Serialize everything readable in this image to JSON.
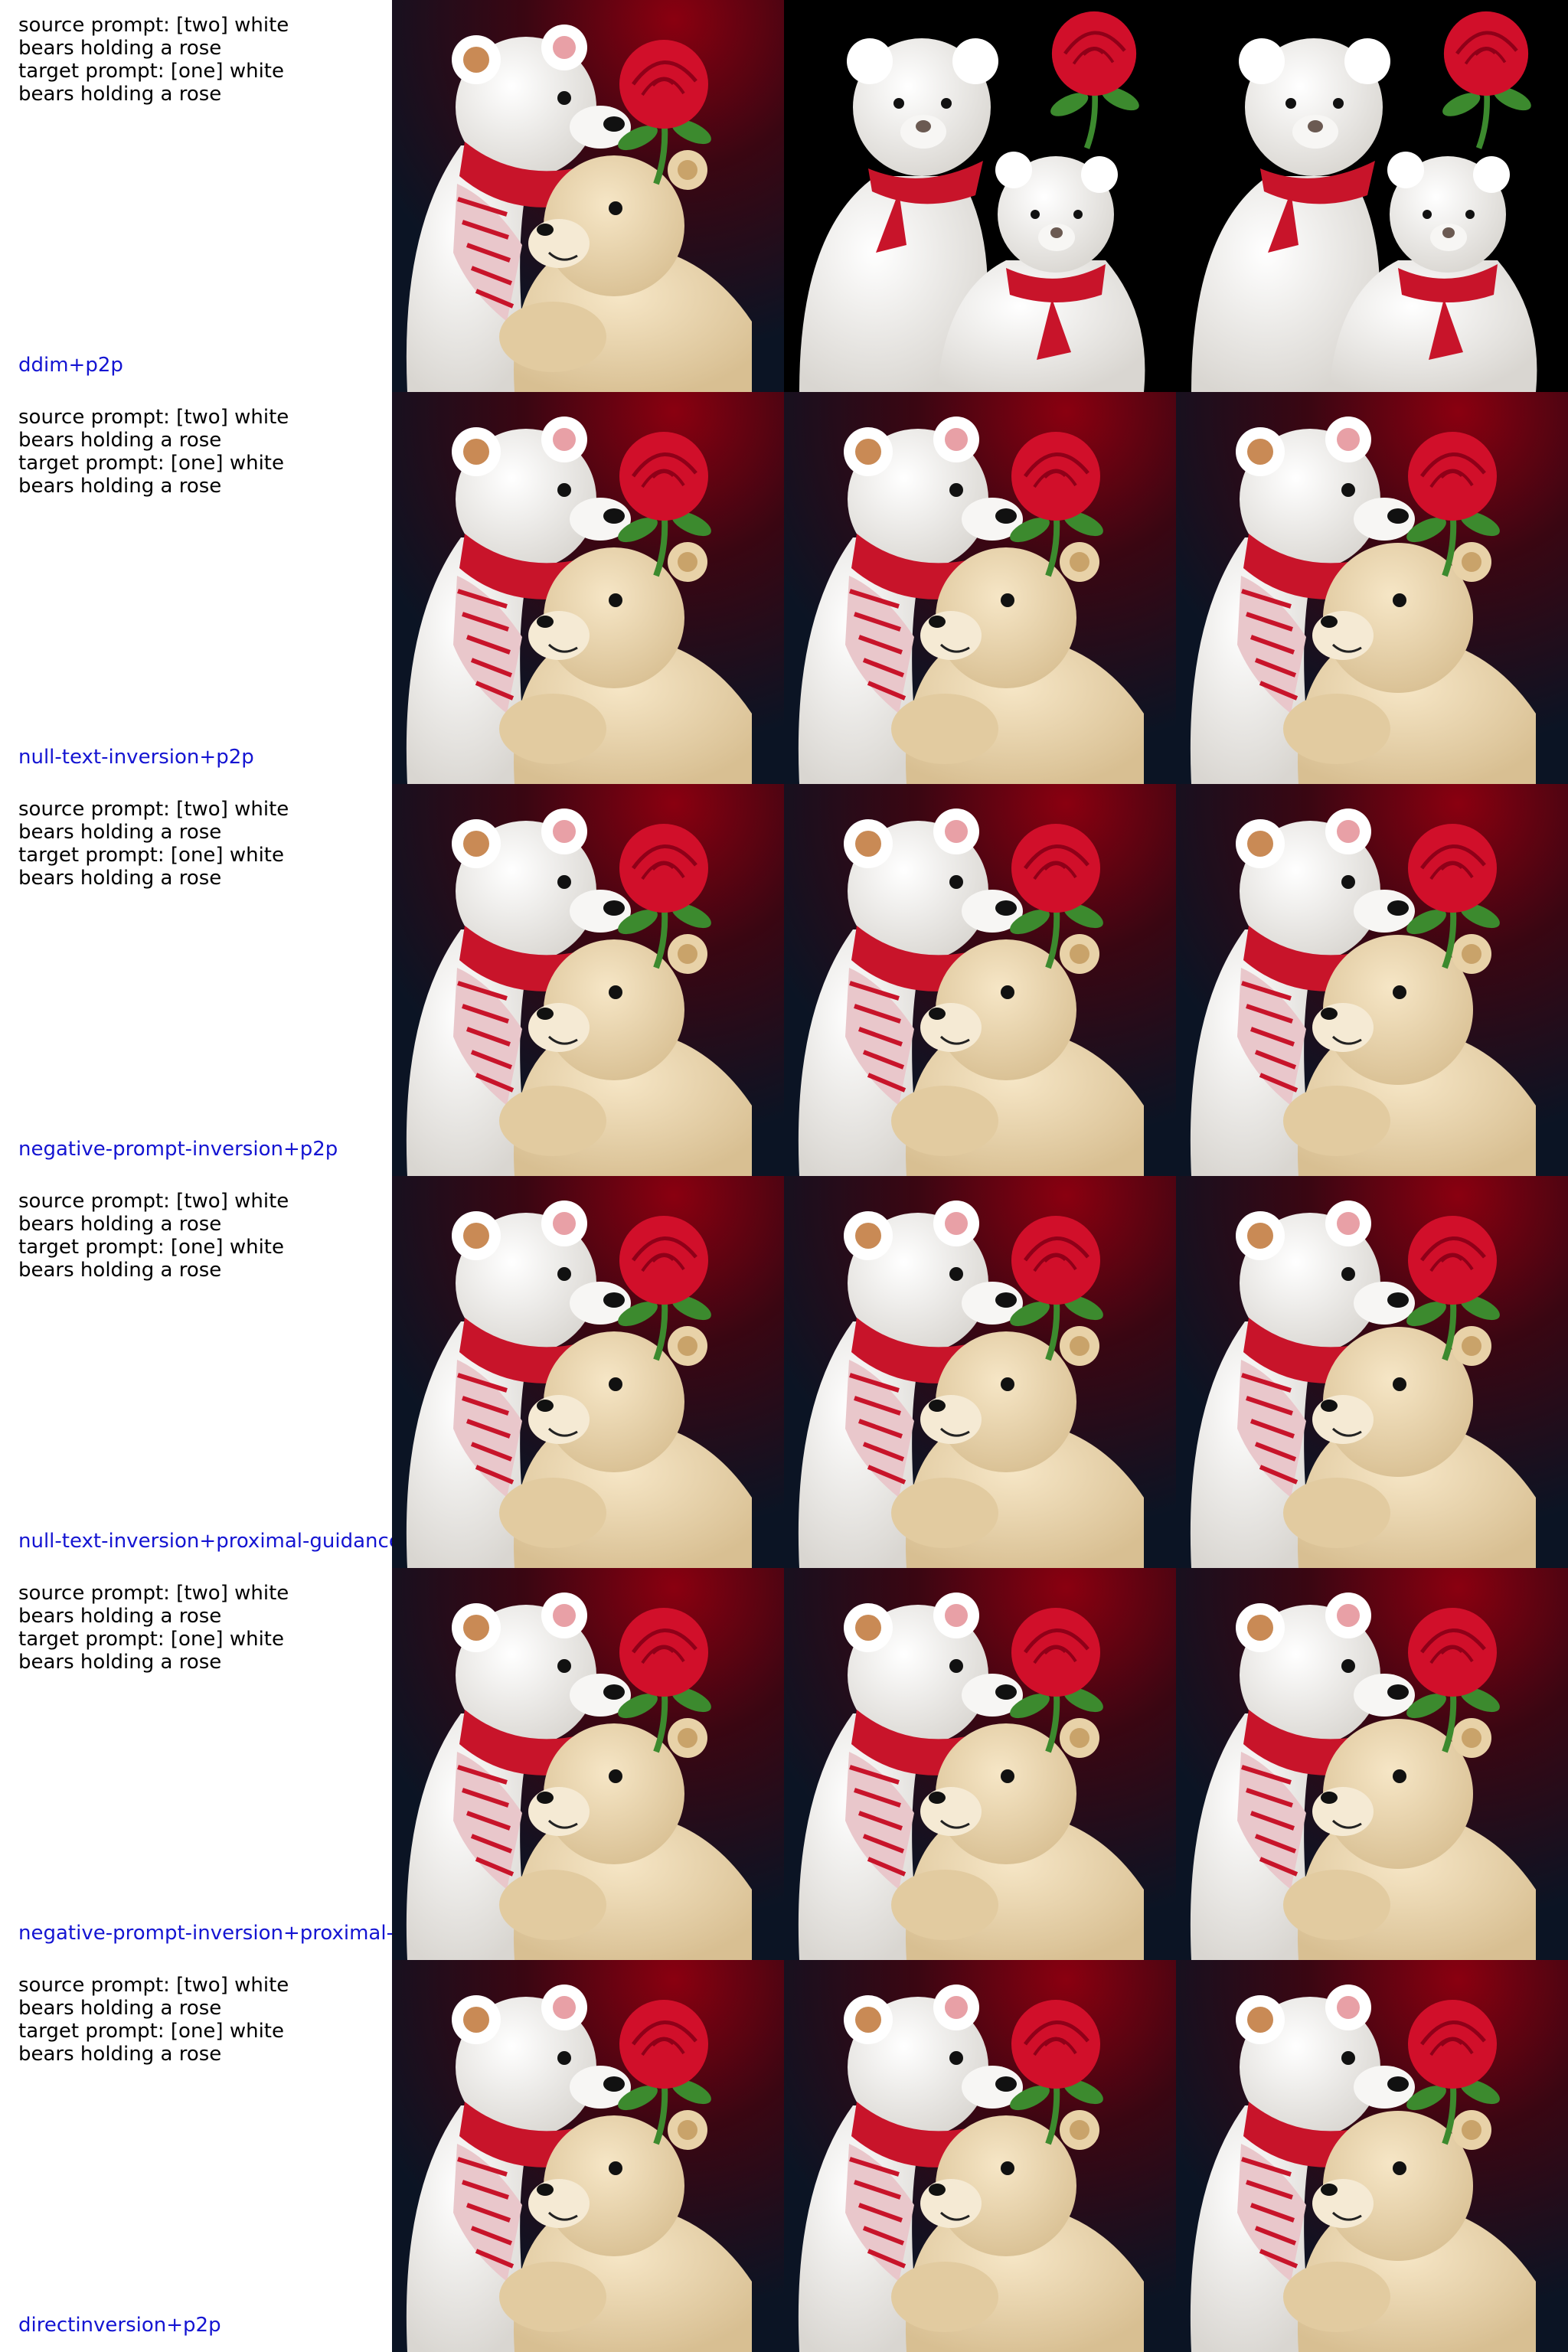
{
  "rows": [
    {
      "source_prompt": "source prompt: [two] white bears holding a rose",
      "target_prompt": "target prompt: [one] white bears holding a rose",
      "method": "ddim+p2p",
      "images": [
        {
          "desc": "white knit bear with red scarf hugging tan bear, red rose, dark background"
        },
        {
          "desc": "two white bears with red ribbons and a large red rose on black background"
        },
        {
          "desc": "two white bears with red ribbons and a large red rose on black background"
        }
      ]
    },
    {
      "source_prompt": "source prompt: [two] white bears holding a rose",
      "target_prompt": "target prompt: [one] white bears holding a rose",
      "method": "null-text-inversion+p2p",
      "images": [
        {},
        {},
        {}
      ]
    },
    {
      "source_prompt": "source prompt: [two] white bears holding a rose",
      "target_prompt": "target prompt: [one] white bears holding a rose",
      "method": "negative-prompt-inversion+p2p",
      "images": [
        {},
        {},
        {}
      ]
    },
    {
      "source_prompt": "source prompt: [two] white bears holding a rose",
      "target_prompt": "target prompt: [one] white bears holding a rose",
      "method": "null-text-inversion+proximal-guidance",
      "images": [
        {},
        {},
        {}
      ]
    },
    {
      "source_prompt": "source prompt: [two] white bears holding a rose",
      "target_prompt": "target prompt: [one] white bears holding a rose",
      "method": "negative-prompt-inversion+proximal-guidance",
      "images": [
        {},
        {},
        {}
      ]
    },
    {
      "source_prompt": "source prompt: [two] white bears holding a rose",
      "target_prompt": "target prompt: [one] white bears holding a rose",
      "method": "directinversion+p2p",
      "images": [
        {},
        {},
        {}
      ]
    }
  ],
  "colors": {
    "method_label": "#1414d2",
    "prompt_text": "#000000",
    "background_dark": "#0b1424",
    "background_red": "#8a0010",
    "white_bear": "#f3f1ee",
    "tan_bear": "#ead7b4",
    "scarf_red": "#c8142a",
    "rose_red": "#d10f2a",
    "leaf_green": "#3c8a2e"
  }
}
